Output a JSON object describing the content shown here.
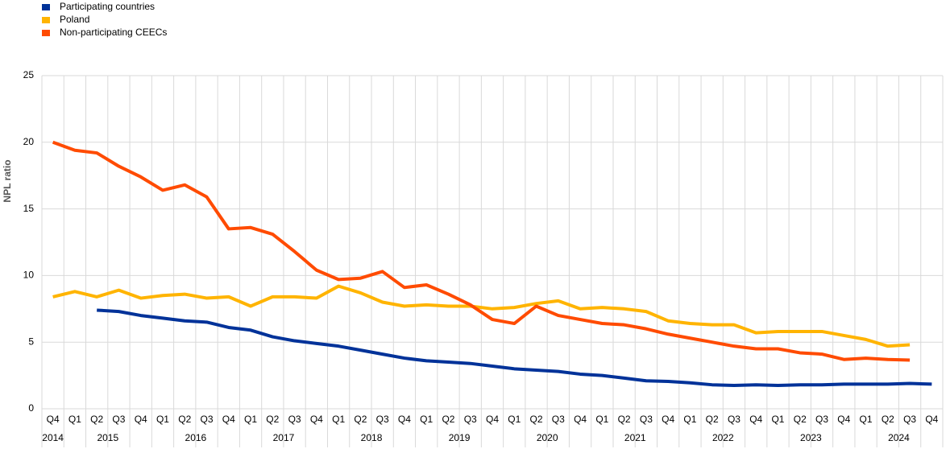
{
  "chart_data": {
    "type": "line",
    "y_label": "NPL ratio",
    "categories": [
      "Q4",
      "Q1",
      "Q2",
      "Q3",
      "Q4",
      "Q1",
      "Q2",
      "Q3",
      "Q4",
      "Q1",
      "Q2",
      "Q3",
      "Q4",
      "Q1",
      "Q2",
      "Q3",
      "Q4",
      "Q1",
      "Q2",
      "Q3",
      "Q4",
      "Q1",
      "Q2",
      "Q3",
      "Q4",
      "Q1",
      "Q2",
      "Q3",
      "Q4",
      "Q1",
      "Q2",
      "Q3",
      "Q4",
      "Q1",
      "Q2",
      "Q3",
      "Q4",
      "Q1",
      "Q2",
      "Q3",
      "Q4"
    ],
    "years": [
      "2014",
      "2015",
      "2016",
      "2017",
      "2018",
      "2019",
      "2020",
      "2021",
      "2022",
      "2023",
      "2024"
    ],
    "ylim": [
      0,
      25
    ],
    "yticks": [
      0,
      5,
      10,
      15,
      20,
      25
    ],
    "grid": true,
    "legend": "top-left",
    "series": [
      {
        "name": "Participating countries",
        "color": "#003299",
        "values": [
          null,
          null,
          7.4,
          7.3,
          7.0,
          6.8,
          6.6,
          6.5,
          6.1,
          5.9,
          5.4,
          5.1,
          4.9,
          4.7,
          4.4,
          4.1,
          3.8,
          3.6,
          3.5,
          3.4,
          3.2,
          3.0,
          2.9,
          2.8,
          2.6,
          2.5,
          2.3,
          2.1,
          2.05,
          1.95,
          1.8,
          1.75,
          1.8,
          1.75,
          1.8,
          1.8,
          1.85,
          1.85,
          1.85,
          1.9,
          1.85
        ]
      },
      {
        "name": "Poland",
        "color": "#ffb400",
        "values": [
          8.4,
          8.8,
          8.4,
          8.9,
          8.3,
          8.5,
          8.6,
          8.3,
          8.4,
          7.7,
          8.4,
          8.4,
          8.3,
          9.2,
          8.7,
          8.0,
          7.7,
          7.8,
          7.7,
          7.7,
          7.5,
          7.6,
          7.9,
          8.1,
          7.5,
          7.6,
          7.5,
          7.3,
          6.6,
          6.4,
          6.3,
          6.3,
          5.7,
          5.8,
          5.8,
          5.8,
          5.5,
          5.2,
          4.7,
          4.8,
          null
        ]
      },
      {
        "name": "Non-participating CEECs",
        "color": "#ff4b00",
        "values": [
          20.0,
          19.4,
          19.2,
          18.2,
          17.4,
          16.4,
          16.8,
          15.9,
          13.5,
          13.6,
          13.1,
          11.8,
          10.4,
          9.7,
          9.8,
          10.3,
          9.1,
          9.3,
          8.6,
          7.8,
          6.7,
          6.4,
          7.7,
          7.0,
          6.7,
          6.4,
          6.3,
          6.0,
          5.6,
          5.3,
          5.0,
          4.7,
          4.5,
          4.5,
          4.2,
          4.1,
          3.7,
          3.8,
          3.7,
          3.65,
          null
        ]
      }
    ]
  }
}
